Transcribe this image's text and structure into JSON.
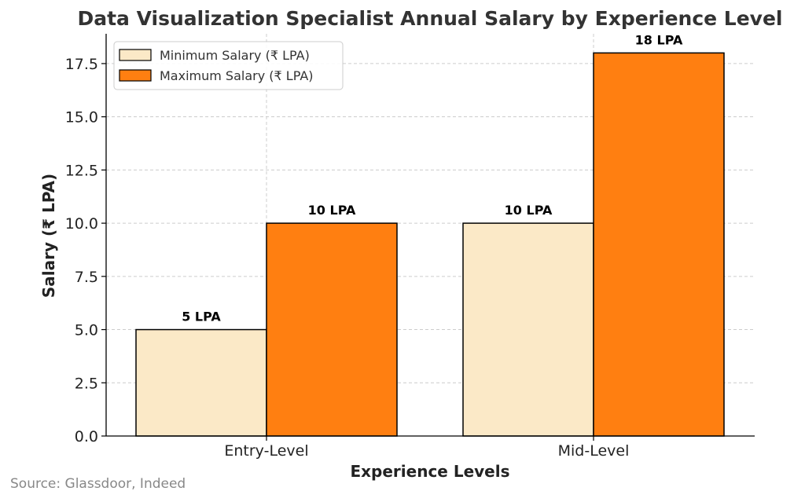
{
  "chart_data": {
    "type": "bar",
    "title": "Data Visualization Specialist Annual Salary by Experience Level",
    "xlabel": "Experience Levels",
    "ylabel": "Salary (₹ LPA)",
    "categories": [
      "Entry-Level",
      "Mid-Level"
    ],
    "series": [
      {
        "name": "Minimum Salary (₹ LPA)",
        "values": [
          5,
          10
        ],
        "data_labels": [
          "5 LPA",
          "10 LPA"
        ],
        "color": "#FBE9C7"
      },
      {
        "name": "Maximum Salary (₹ LPA)",
        "values": [
          10,
          18
        ],
        "data_labels": [
          "10 LPA",
          "18 LPA"
        ],
        "color": "#FF7F11"
      }
    ],
    "ylim": [
      0,
      18.9
    ],
    "yticks": [
      0,
      2.5,
      5,
      7.5,
      10,
      12.5,
      15,
      17.5
    ],
    "ytick_labels": [
      "0.0",
      "2.5",
      "5.0",
      "7.5",
      "10.0",
      "12.5",
      "15.0",
      "17.5"
    ],
    "grid": true,
    "legend_position": "top-left",
    "source": "Source: Glassdoor, Indeed"
  }
}
